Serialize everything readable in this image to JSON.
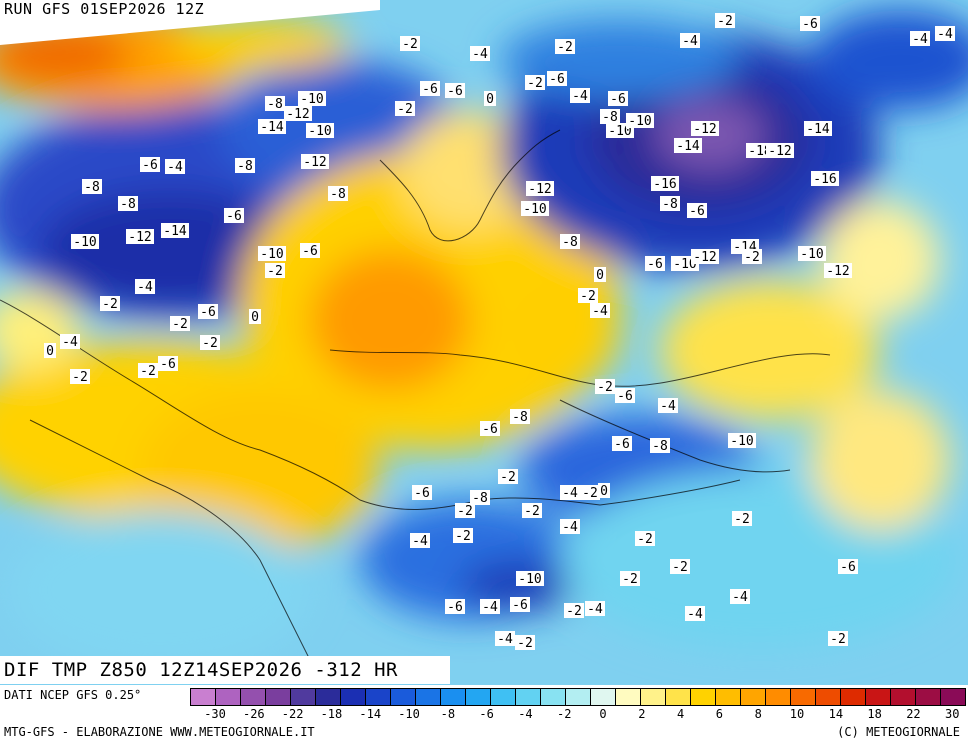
{
  "header": {
    "run": "RUN GFS 01SEP2026 12Z"
  },
  "map": {
    "title": "DIF TMP Z850 12Z14SEP2026 -312 HR",
    "contour_labels": [
      "-2",
      "-4",
      "-2",
      "-4",
      "-2",
      "-6",
      "-4",
      "-4",
      "-8",
      "-10",
      "-6",
      "-6",
      "0",
      "-2",
      "-6",
      "-4",
      "-2",
      "-6",
      "-8",
      "-10",
      "-10",
      "-12",
      "-14",
      "-16",
      "-18",
      "-12",
      "-14",
      "-16",
      "-12",
      "-10",
      "-8",
      "-6",
      "-8",
      "-6",
      "-10",
      "-12",
      "-14",
      "-2",
      "-10",
      "-12",
      "-14",
      "-12",
      "-10",
      "-12",
      "-8",
      "-8",
      "-4",
      "-6",
      "-8",
      "-8",
      "-10",
      "-12",
      "-14",
      "-6",
      "-10",
      "-2",
      "-6",
      "-4",
      "-2",
      "-6",
      "0",
      "-2",
      "0",
      "-4",
      "-2",
      "-2",
      "-6",
      "-2",
      "0",
      "-2",
      "-4",
      "-2",
      "-6",
      "-4",
      "-6",
      "-8",
      "-10",
      "-8",
      "-6",
      "-2",
      "-6",
      "-8",
      "-2",
      "-4",
      "-2",
      "0",
      "-2",
      "-4",
      "-2",
      "-4",
      "-6",
      "-10",
      "-6",
      "-4",
      "-4",
      "-2",
      "-2",
      "-4",
      "-2",
      "-2",
      "-2",
      "-2",
      "-4",
      "-6",
      "-4",
      "-2"
    ]
  },
  "legend": {
    "source": "DATI NCEP GFS 0.25°",
    "colors": [
      "#c97fd0",
      "#ae63c0",
      "#9450ae",
      "#7a3e9e",
      "#503a9e",
      "#2b2c9a",
      "#1b2fb3",
      "#1a44c9",
      "#1a5bdb",
      "#1a74e6",
      "#1a8ff0",
      "#23a6f2",
      "#3fc0f3",
      "#62d2f2",
      "#88e2f2",
      "#b3eef2",
      "#e0f7f0",
      "#fffbc0",
      "#fff28a",
      "#ffe34a",
      "#ffd200",
      "#ffbd00",
      "#ffa500",
      "#ff8c00",
      "#f86a00",
      "#ee4c00",
      "#de2b00",
      "#c91515",
      "#b30f2e",
      "#9c0d44",
      "#8a0b57"
    ],
    "ticks": [
      "-30",
      "-26",
      "-22",
      "-18",
      "-14",
      "-10",
      "-8",
      "-6",
      "-4",
      "-2",
      "0",
      "2",
      "4",
      "6",
      "8",
      "10",
      "14",
      "18",
      "22",
      "30"
    ],
    "credit": "MTG-GFS - ELABORAZIONE WWW.METEOGIORNALE.IT",
    "copyright": "(C) METEOGIORNALE"
  }
}
